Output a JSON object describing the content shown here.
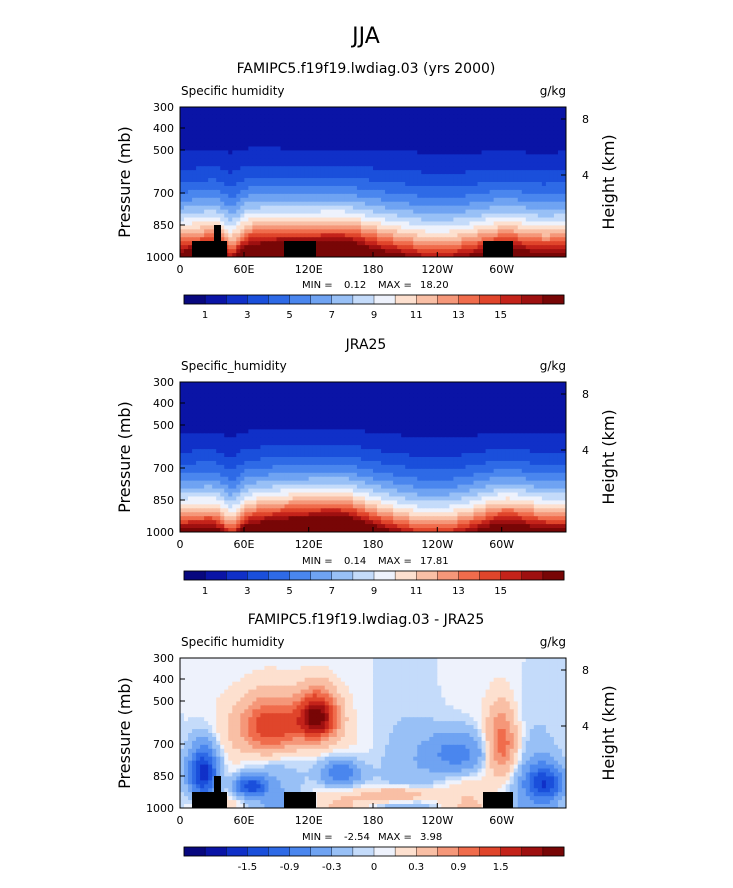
{
  "page_title": "JJA",
  "chart_data": [
    {
      "type": "heatmap",
      "title": "FAMIPC5.f19f19.lwdiag.03 (yrs 2000)",
      "variable_label": "Specific humidity",
      "units": "g/kg",
      "ylabel": "Pressure (mb)",
      "ylabel_right": "Height (km)",
      "x_ticks": [
        "0",
        "60E",
        "120E",
        "180",
        "120W",
        "60W"
      ],
      "y_ticks": [
        "300",
        "400",
        "500",
        "700",
        "850",
        "1000"
      ],
      "right_ticks": [
        "8",
        "4"
      ],
      "stats": {
        "min_label": "MIN =",
        "min": "0.12",
        "max_label": "MAX =",
        "max": "18.20"
      },
      "colorbar_labels": [
        "1",
        "3",
        "5",
        "7",
        "9",
        "11",
        "13",
        "15"
      ],
      "colorbar_levels": [
        0,
        1,
        2,
        3,
        4,
        5,
        6,
        7,
        8,
        9,
        10,
        11,
        12,
        13,
        14,
        15,
        16,
        17
      ],
      "has_topography": true
    },
    {
      "type": "heatmap",
      "title": "JRA25",
      "variable_label": "Specific_humidity",
      "units": "g/kg",
      "ylabel": "Pressure (mb)",
      "ylabel_right": "Height (km)",
      "x_ticks": [
        "0",
        "60E",
        "120E",
        "180",
        "120W",
        "60W"
      ],
      "y_ticks": [
        "300",
        "400",
        "500",
        "700",
        "850",
        "1000"
      ],
      "right_ticks": [
        "8",
        "4"
      ],
      "stats": {
        "min_label": "MIN =",
        "min": "0.14",
        "max_label": "MAX =",
        "max": "17.81"
      },
      "colorbar_labels": [
        "1",
        "3",
        "5",
        "7",
        "9",
        "11",
        "13",
        "15"
      ],
      "colorbar_levels": [
        0,
        1,
        2,
        3,
        4,
        5,
        6,
        7,
        8,
        9,
        10,
        11,
        12,
        13,
        14,
        15,
        16,
        17
      ],
      "has_topography": false
    },
    {
      "type": "heatmap",
      "title": "FAMIPC5.f19f19.lwdiag.03 - JRA25",
      "variable_label": "Specific humidity",
      "units": "g/kg",
      "ylabel": "Pressure (mb)",
      "ylabel_right": "Height (km)",
      "x_ticks": [
        "0",
        "60E",
        "120E",
        "180",
        "120W",
        "60W"
      ],
      "y_ticks": [
        "300",
        "400",
        "500",
        "700",
        "850",
        "1000"
      ],
      "right_ticks": [
        "8",
        "4"
      ],
      "stats": {
        "min_label": "MIN =",
        "min": "-2.54",
        "max_label": "MAX =",
        "max": "3.98"
      },
      "colorbar_labels": [
        "-1.5",
        "-0.9",
        "-0.3",
        "0",
        "0.3",
        "0.9",
        "1.5"
      ],
      "colorbar_levels": [
        -2.1,
        -1.8,
        -1.5,
        -1.2,
        -0.9,
        -0.6,
        -0.3,
        -0.1,
        0,
        0.1,
        0.3,
        0.6,
        0.9,
        1.2,
        1.5,
        1.8,
        2.1
      ],
      "has_topography": true
    }
  ],
  "colormap": [
    "#08087f",
    "#0a14a6",
    "#1030c8",
    "#1a4fdb",
    "#2e6ae6",
    "#4a86ee",
    "#6fa3f2",
    "#98c0f6",
    "#c4dbfa",
    "#eef2fc",
    "#fde0cf",
    "#f9bfa5",
    "#f59779",
    "#f06c4c",
    "#e0452b",
    "#c4231a",
    "#9e1010",
    "#780606"
  ]
}
